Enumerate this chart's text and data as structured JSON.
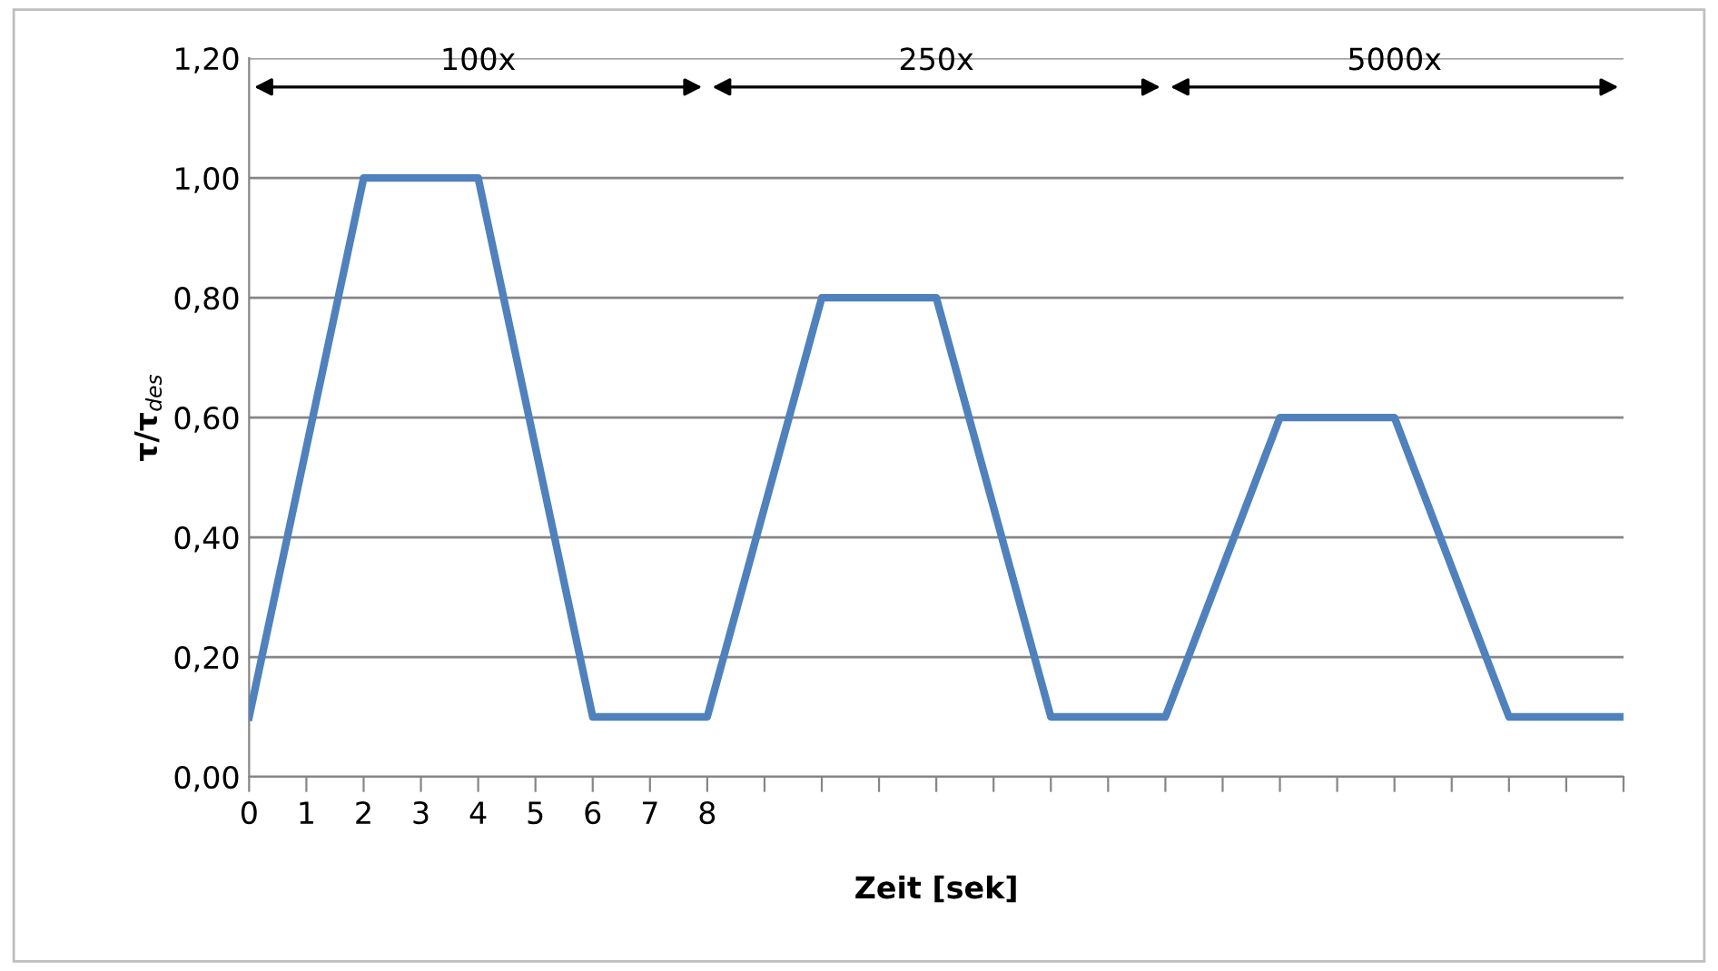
{
  "chart_data": {
    "type": "line",
    "xlabel": "Zeit [sek]",
    "ylabel": "τ/τ$_{des}$",
    "x": [
      0,
      2,
      4,
      6,
      8,
      10,
      12,
      14,
      16,
      18,
      20,
      22,
      24
    ],
    "series": [
      {
        "color": "#4f81bd",
        "values": [
          0.1,
          1.0,
          1.0,
          0.1,
          0.1,
          0.8,
          0.8,
          0.1,
          0.1,
          0.6,
          0.6,
          0.1,
          0.1
        ]
      }
    ],
    "xlim": [
      0,
      24
    ],
    "xticks": [
      0,
      1,
      2,
      3,
      4,
      5,
      6,
      7,
      8,
      {
        "value": 9,
        "label": null
      },
      {
        "value": 10,
        "label": null
      },
      {
        "value": 11,
        "label": null
      },
      {
        "value": 12,
        "label": null
      },
      {
        "value": 13,
        "label": null
      },
      {
        "value": 14,
        "label": null
      },
      {
        "value": 15,
        "label": null
      },
      {
        "value": 16,
        "label": null
      },
      {
        "value": 17,
        "label": null
      },
      {
        "value": 18,
        "label": null
      },
      {
        "value": 19,
        "label": null
      },
      {
        "value": 20,
        "label": null
      },
      {
        "value": 21,
        "label": null
      },
      {
        "value": 22,
        "label": null
      },
      {
        "value": 23,
        "label": null
      },
      {
        "value": 24,
        "label": null
      }
    ],
    "ylim": [
      0,
      1.2
    ],
    "yticks": [
      {
        "value": 0,
        "label": "0,00"
      },
      {
        "value": 0.2,
        "label": "0,20"
      },
      {
        "value": 0.4,
        "label": "0,40"
      },
      {
        "value": 0.6,
        "label": "0,60"
      },
      {
        "value": 0.8,
        "label": "0,80"
      },
      {
        "value": 1.0,
        "label": "1,00"
      },
      {
        "value": 1.2,
        "label": "1,20"
      }
    ],
    "grid": "y",
    "marker": "none",
    "line_style": "solid",
    "legend": false,
    "annotations": [
      "100x",
      "250x",
      "5000x"
    ]
  }
}
